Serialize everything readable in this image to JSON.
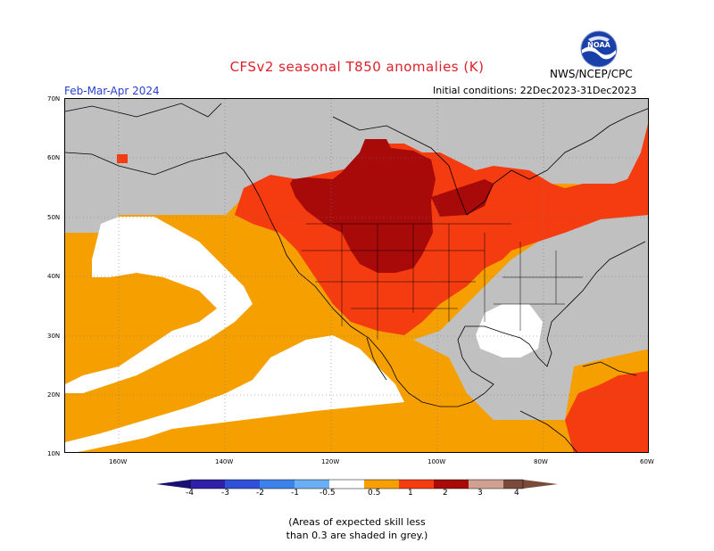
{
  "header": {
    "title": "CFSv2 seasonal T850 anomalies (K)",
    "season": "Feb-Mar-Apr 2024",
    "initial_conditions": "Initial conditions: 22Dec2023-31Dec2023",
    "agency": "NWS/NCEP/CPC",
    "logo_text": "NOAA"
  },
  "map": {
    "lat_labels": [
      "70N",
      "60N",
      "50N",
      "40N",
      "30N",
      "20N",
      "10N"
    ],
    "lon_labels": [
      "160W",
      "140W",
      "120W",
      "100W",
      "80W",
      "60W"
    ],
    "colors": {
      "grey": "#c0c0c0",
      "white": "#ffffff",
      "orange": "#f5a000",
      "orange_red": "#f53c10",
      "red": "#e22a0a",
      "dark_red": "#a80a0a",
      "land_line": "#000000"
    }
  },
  "colorbar": {
    "labels": [
      "-4",
      "-3",
      "-2",
      "-1",
      "-0.5",
      "0.5",
      "1",
      "2",
      "3",
      "4"
    ],
    "colors": [
      "#3020a8",
      "#3050d8",
      "#3c82ea",
      "#6aaef4",
      "#ffffff",
      "#f5a000",
      "#f53c10",
      "#a80a0a",
      "#d0a090",
      "#7a4a3a"
    ]
  },
  "note": {
    "line1": "(Areas of expected skill less",
    "line2": "than 0.3 are shaded in grey.)"
  }
}
